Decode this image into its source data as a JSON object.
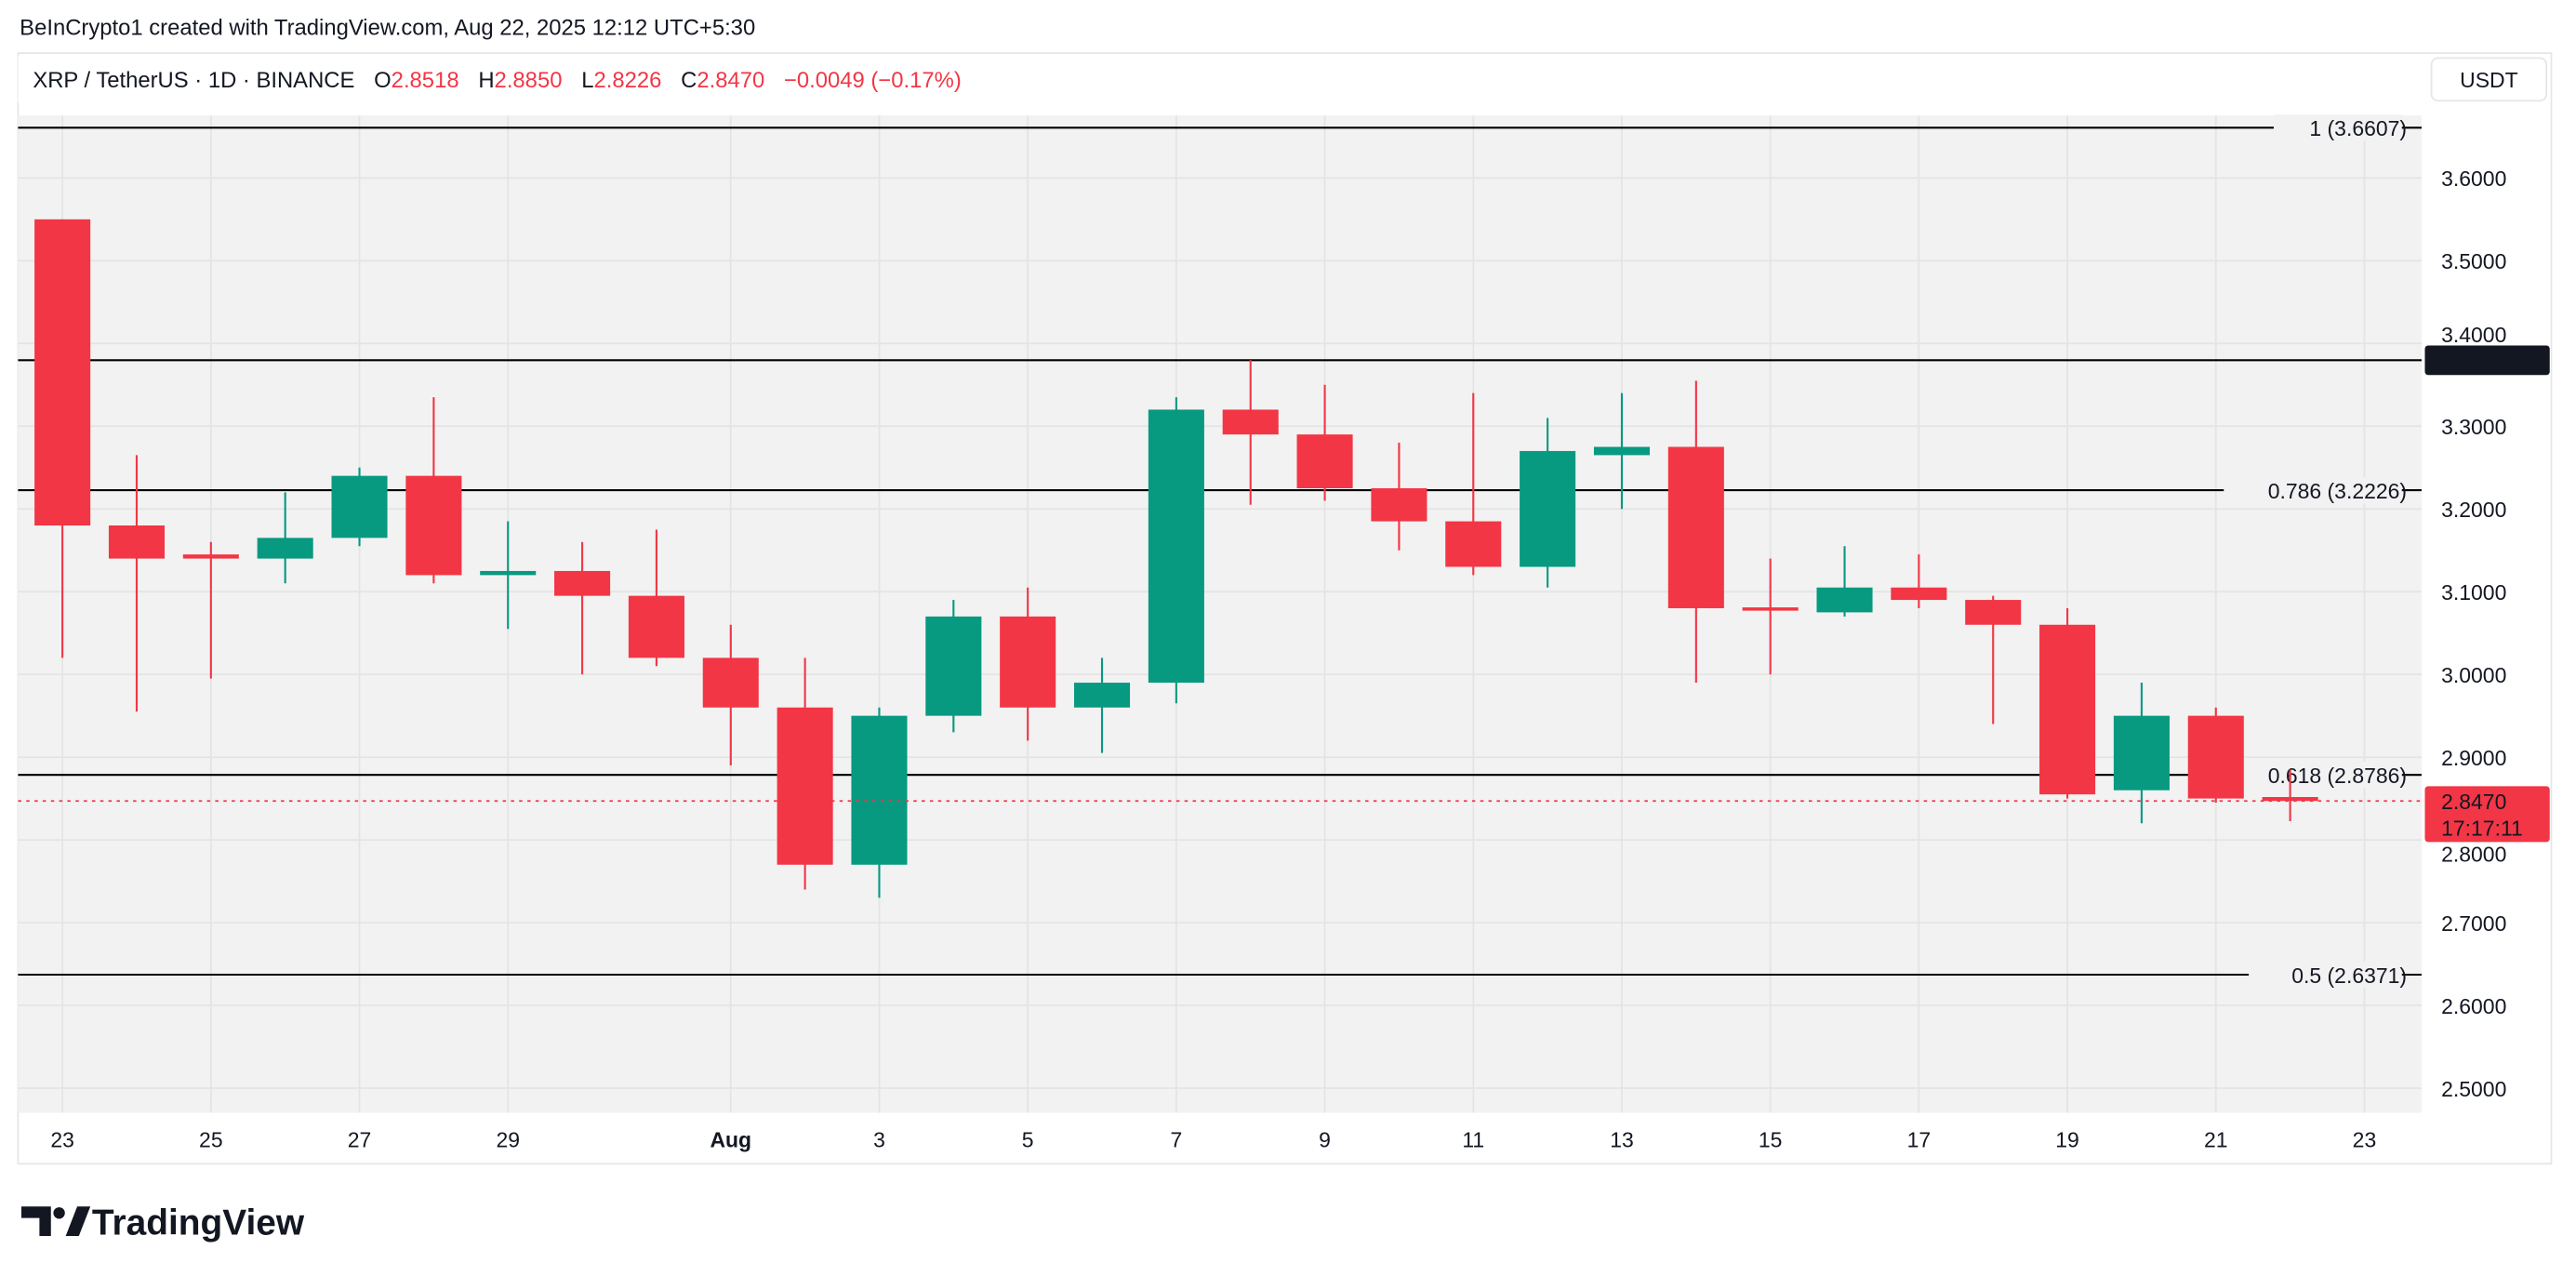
{
  "header": {
    "credit": "BeInCrypto1 created with TradingView.com, Aug 22, 2025 12:12 UTC+5:30",
    "symbol": "XRP / TetherUS · 1D · BINANCE",
    "o_label": "O",
    "o_value": "2.8518",
    "h_label": "H",
    "h_value": "2.8850",
    "l_label": "L",
    "l_value": "2.8226",
    "c_label": "C",
    "c_value": "2.8470",
    "change": "−0.0049 (−0.17%)"
  },
  "currency_button": "USDT",
  "logo_text": "TradingView",
  "colors": {
    "up": "#089981",
    "down": "#f23645",
    "fib_line": "#000000",
    "plot_bg": "#f2f2f2"
  },
  "chart_data": {
    "type": "candlestick",
    "y_range": [
      2.47,
      3.69
    ],
    "y_ticks": [
      "3.6000",
      "3.5000",
      "3.4000",
      "3.3000",
      "3.2000",
      "3.1000",
      "3.0000",
      "2.9000",
      "2.8000",
      "2.7000",
      "2.6000",
      "2.5000"
    ],
    "x_ticks": [
      "23",
      "25",
      "27",
      "29",
      "Aug",
      "3",
      "5",
      "7",
      "9",
      "11",
      "13",
      "15",
      "17",
      "19",
      "21",
      "23"
    ],
    "x_tick_dates": [
      "2025-07-23",
      "2025-07-25",
      "2025-07-27",
      "2025-07-29",
      "2025-08-01",
      "2025-08-03",
      "2025-08-05",
      "2025-08-07",
      "2025-08-09",
      "2025-08-11",
      "2025-08-13",
      "2025-08-15",
      "2025-08-17",
      "2025-08-19",
      "2025-08-21",
      "2025-08-23"
    ],
    "candles": [
      {
        "date": "2025-07-23",
        "o": 3.55,
        "h": 3.55,
        "l": 3.02,
        "c": 3.18
      },
      {
        "date": "2025-07-24",
        "o": 3.18,
        "h": 3.265,
        "l": 2.955,
        "c": 3.14
      },
      {
        "date": "2025-07-25",
        "o": 3.145,
        "h": 3.16,
        "l": 2.995,
        "c": 3.14
      },
      {
        "date": "2025-07-26",
        "o": 3.14,
        "h": 3.22,
        "l": 3.11,
        "c": 3.165
      },
      {
        "date": "2025-07-27",
        "o": 3.165,
        "h": 3.25,
        "l": 3.155,
        "c": 3.24
      },
      {
        "date": "2025-07-28",
        "o": 3.24,
        "h": 3.335,
        "l": 3.11,
        "c": 3.12
      },
      {
        "date": "2025-07-29",
        "o": 3.12,
        "h": 3.185,
        "l": 3.055,
        "c": 3.125
      },
      {
        "date": "2025-07-30",
        "o": 3.125,
        "h": 3.16,
        "l": 3.0,
        "c": 3.095
      },
      {
        "date": "2025-07-31",
        "o": 3.095,
        "h": 3.175,
        "l": 3.01,
        "c": 3.02
      },
      {
        "date": "2025-08-01",
        "o": 3.02,
        "h": 3.06,
        "l": 2.89,
        "c": 2.96
      },
      {
        "date": "2025-08-02",
        "o": 2.96,
        "h": 3.02,
        "l": 2.74,
        "c": 2.77
      },
      {
        "date": "2025-08-03",
        "o": 2.77,
        "h": 2.96,
        "l": 2.73,
        "c": 2.95
      },
      {
        "date": "2025-08-04",
        "o": 2.95,
        "h": 3.09,
        "l": 2.93,
        "c": 3.07
      },
      {
        "date": "2025-08-05",
        "o": 3.07,
        "h": 3.105,
        "l": 2.92,
        "c": 2.96
      },
      {
        "date": "2025-08-06",
        "o": 2.96,
        "h": 3.02,
        "l": 2.905,
        "c": 2.99
      },
      {
        "date": "2025-08-07",
        "o": 2.99,
        "h": 3.335,
        "l": 2.965,
        "c": 3.32
      },
      {
        "date": "2025-08-08",
        "o": 3.32,
        "h": 3.38,
        "l": 3.205,
        "c": 3.29
      },
      {
        "date": "2025-08-09",
        "o": 3.29,
        "h": 3.35,
        "l": 3.21,
        "c": 3.225
      },
      {
        "date": "2025-08-10",
        "o": 3.225,
        "h": 3.28,
        "l": 3.15,
        "c": 3.185
      },
      {
        "date": "2025-08-11",
        "o": 3.185,
        "h": 3.34,
        "l": 3.12,
        "c": 3.13
      },
      {
        "date": "2025-08-12",
        "o": 3.13,
        "h": 3.31,
        "l": 3.105,
        "c": 3.27
      },
      {
        "date": "2025-08-13",
        "o": 3.265,
        "h": 3.34,
        "l": 3.2,
        "c": 3.275
      },
      {
        "date": "2025-08-14",
        "o": 3.275,
        "h": 3.355,
        "l": 2.99,
        "c": 3.08
      },
      {
        "date": "2025-08-15",
        "o": 3.081,
        "h": 3.14,
        "l": 3.0,
        "c": 3.08
      },
      {
        "date": "2025-08-16",
        "o": 3.075,
        "h": 3.155,
        "l": 3.07,
        "c": 3.105
      },
      {
        "date": "2025-08-17",
        "o": 3.105,
        "h": 3.145,
        "l": 3.08,
        "c": 3.09
      },
      {
        "date": "2025-08-18",
        "o": 3.09,
        "h": 3.095,
        "l": 2.94,
        "c": 3.06
      },
      {
        "date": "2025-08-19",
        "o": 3.06,
        "h": 3.08,
        "l": 2.85,
        "c": 2.855
      },
      {
        "date": "2025-08-20",
        "o": 2.86,
        "h": 2.99,
        "l": 2.82,
        "c": 2.95
      },
      {
        "date": "2025-08-21",
        "o": 2.95,
        "h": 2.96,
        "l": 2.845,
        "c": 2.85
      },
      {
        "date": "2025-08-22",
        "o": 2.8518,
        "h": 2.885,
        "l": 2.8226,
        "c": 2.847
      }
    ],
    "fib_levels": [
      {
        "label": "1 (3.6607)",
        "value": 3.6607
      },
      {
        "label": "0.786 (3.2226)",
        "value": 3.2226
      },
      {
        "label": "0.618 (2.8786)",
        "value": 2.8786
      },
      {
        "label": "0.5 (2.6371)",
        "value": 2.6371
      }
    ],
    "horizontal_line": {
      "value": 3.3797,
      "label": "3.3797"
    },
    "last_price": {
      "value": 2.847,
      "label": "2.8470",
      "countdown": "17:17:11"
    }
  }
}
